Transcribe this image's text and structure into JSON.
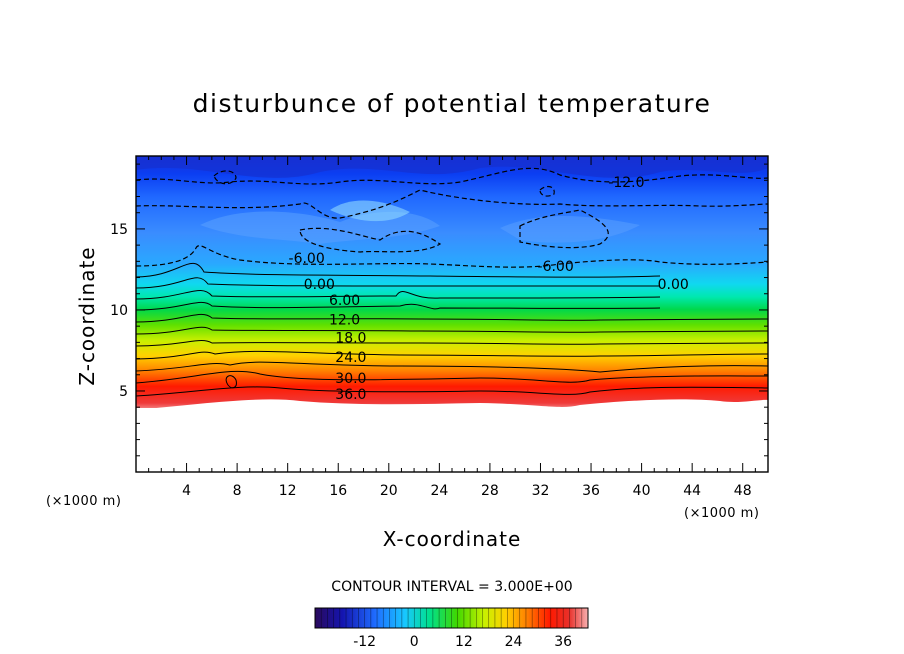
{
  "chart_data": {
    "type": "contour",
    "title": "disturbunce of potential temperature",
    "xlabel": "X-coordinate",
    "ylabel": "Z-coordinate",
    "x_unit": "(×1000 m)",
    "y_unit": "(×1000 m)",
    "xlim": [
      0,
      50
    ],
    "ylim": [
      0,
      19.5
    ],
    "x_ticks": [
      4,
      8,
      12,
      16,
      20,
      24,
      28,
      32,
      36,
      40,
      44,
      48
    ],
    "y_ticks": [
      5,
      10,
      15
    ],
    "contour_interval_label": "CONTOUR INTERVAL = 3.000E+00",
    "contour_interval": 3.0,
    "colorbar": {
      "range": [
        -24,
        42
      ],
      "tick_values": [
        -12,
        0,
        12,
        24,
        36
      ],
      "tick_labels": [
        "-12",
        "0",
        "12",
        "24",
        "36"
      ]
    },
    "contour_labels": [
      {
        "text": "-12.0",
        "x": 38.8,
        "z": 17.9
      },
      {
        "text": "-6.00",
        "x": 13.5,
        "z": 13.2
      },
      {
        "text": "-6.00",
        "x": 33.2,
        "z": 12.7
      },
      {
        "text": "0.00",
        "x": 14.5,
        "z": 11.6
      },
      {
        "text": "0.00",
        "x": 42.5,
        "z": 11.6
      },
      {
        "text": "6.00",
        "x": 16.5,
        "z": 10.6
      },
      {
        "text": "12.0",
        "x": 16.5,
        "z": 9.4
      },
      {
        "text": "18.0",
        "x": 17.0,
        "z": 8.3
      },
      {
        "text": "24.0",
        "x": 17.0,
        "z": 7.1
      },
      {
        "text": "30.0",
        "x": 17.0,
        "z": 5.8
      },
      {
        "text": "36.0",
        "x": 17.0,
        "z": 4.8
      }
    ],
    "ground_level_z": 4.1
  }
}
